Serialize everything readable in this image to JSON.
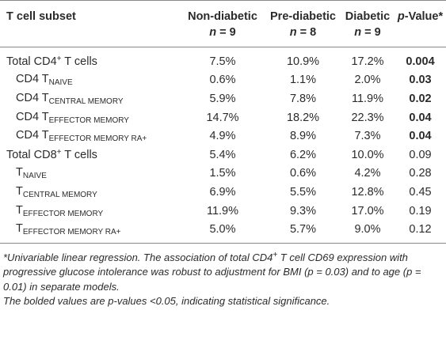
{
  "table": {
    "header": {
      "subset": "T cell subset",
      "groups": [
        {
          "name": "Non-diabetic",
          "n": [
            {
              "i": "n"
            },
            " = 9"
          ]
        },
        {
          "name": "Pre-diabetic",
          "n": [
            {
              "i": "n"
            },
            " = 8"
          ]
        },
        {
          "name": "Diabetic",
          "n": [
            {
              "i": "n"
            },
            " = 9"
          ]
        }
      ],
      "p": [
        {
          "i": "p"
        },
        "-Value*"
      ]
    },
    "rows": [
      {
        "label": [
          "Total CD4",
          {
            "sup": "+"
          },
          " T cells"
        ],
        "level": 0,
        "cells": [
          "7.5%",
          "10.9%",
          "17.2%"
        ],
        "p": "0.004",
        "significant": true
      },
      {
        "label": [
          "CD4 T",
          {
            "sub": "NAIVE"
          }
        ],
        "level": 1,
        "cells": [
          "0.6%",
          "1.1%",
          "2.0%"
        ],
        "p": "0.03",
        "significant": true
      },
      {
        "label": [
          "CD4 T",
          {
            "sub": "CENTRAL MEMORY"
          }
        ],
        "level": 1,
        "cells": [
          "5.9%",
          "7.8%",
          "11.9%"
        ],
        "p": "0.02",
        "significant": true
      },
      {
        "label": [
          "CD4 T",
          {
            "sub": "EFFECTOR MEMORY"
          }
        ],
        "level": 1,
        "cells": [
          "14.7%",
          "18.2%",
          "22.3%"
        ],
        "p": "0.04",
        "significant": true
      },
      {
        "label": [
          "CD4 T",
          {
            "sub": "EFFECTOR MEMORY RA+"
          }
        ],
        "level": 1,
        "cells": [
          "4.9%",
          "8.9%",
          "7.3%"
        ],
        "p": "0.04",
        "significant": true
      },
      {
        "label": [
          "Total CD8",
          {
            "sup": "+"
          },
          " T cells"
        ],
        "level": 0,
        "cells": [
          "5.4%",
          "6.2%",
          "10.0%"
        ],
        "p": "0.09",
        "significant": false
      },
      {
        "label": [
          "T",
          {
            "sub": "NAIVE"
          }
        ],
        "level": 1,
        "cells": [
          "1.5%",
          "0.6%",
          "4.2%"
        ],
        "p": "0.28",
        "significant": false
      },
      {
        "label": [
          "T",
          {
            "sub": "CENTRAL MEMORY"
          }
        ],
        "level": 1,
        "cells": [
          "6.9%",
          "5.5%",
          "12.8%"
        ],
        "p": "0.45",
        "significant": false
      },
      {
        "label": [
          "T",
          {
            "sub": "EFFECTOR MEMORY"
          }
        ],
        "level": 1,
        "cells": [
          "11.9%",
          "9.3%",
          "17.0%"
        ],
        "p": "0.19",
        "significant": false
      },
      {
        "label": [
          "T",
          {
            "sub": "EFFECTOR MEMORY RA+"
          }
        ],
        "level": 1,
        "cells": [
          "5.0%",
          "5.7%",
          "9.0%"
        ],
        "p": "0.12",
        "significant": false
      }
    ],
    "footnotes": [
      [
        "*Univariable linear regression. The association of total CD4",
        {
          "sup": "+"
        },
        " T cell CD69 expression with progressive glucose intolerance was robust to adjustment for BMI (p = 0.03) and to age (p = 0.01) in separate models."
      ],
      [
        "The bolded values are p-values <0.05, indicating statistical significance."
      ]
    ]
  }
}
